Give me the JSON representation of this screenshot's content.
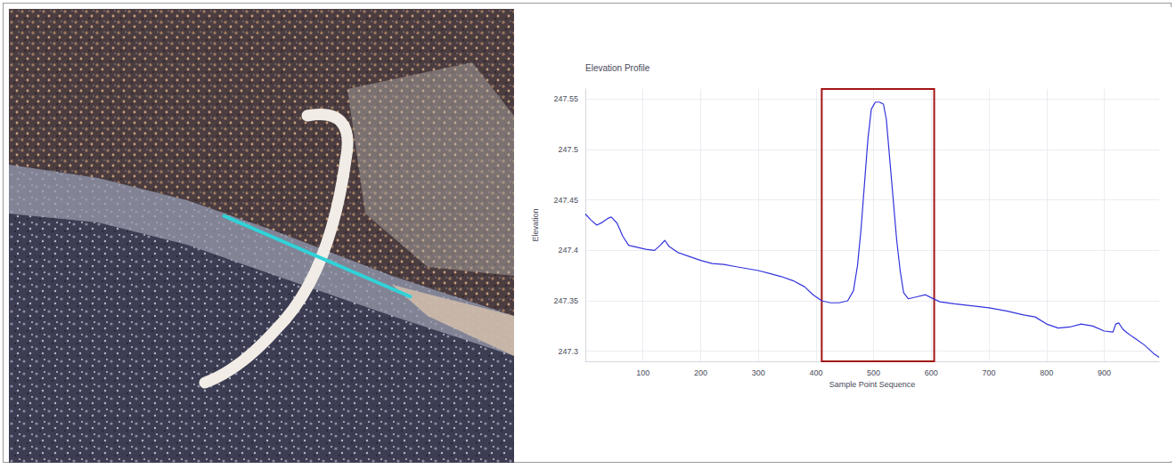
{
  "chart_data": {
    "type": "line",
    "title": "Elevation Profile",
    "x_label": "Sample Point Sequence",
    "y_label": "Elevation",
    "x": [
      0,
      10,
      20,
      30,
      40,
      45,
      55,
      65,
      75,
      90,
      105,
      120,
      130,
      138,
      145,
      160,
      180,
      200,
      220,
      240,
      260,
      280,
      300,
      320,
      340,
      360,
      380,
      395,
      410,
      425,
      440,
      455,
      465,
      472,
      478,
      484,
      490,
      496,
      503,
      510,
      517,
      522,
      528,
      534,
      540,
      546,
      552,
      560,
      575,
      590,
      600,
      615,
      640,
      670,
      700,
      730,
      760,
      780,
      800,
      820,
      840,
      860,
      880,
      900,
      915,
      920,
      925,
      932,
      940,
      955,
      970,
      985,
      995
    ],
    "values": [
      247.436,
      247.43,
      247.425,
      247.428,
      247.432,
      247.433,
      247.427,
      247.414,
      247.405,
      247.403,
      247.401,
      247.4,
      247.405,
      247.41,
      247.404,
      247.398,
      247.394,
      247.39,
      247.387,
      247.386,
      247.384,
      247.382,
      247.38,
      247.377,
      247.374,
      247.37,
      247.364,
      247.356,
      247.35,
      247.348,
      247.348,
      247.35,
      247.36,
      247.385,
      247.42,
      247.465,
      247.51,
      247.54,
      247.547,
      247.547,
      247.545,
      247.53,
      247.49,
      247.45,
      247.41,
      247.38,
      247.358,
      247.352,
      247.354,
      247.356,
      247.353,
      247.349,
      247.347,
      247.345,
      247.343,
      247.34,
      247.336,
      247.334,
      247.327,
      247.323,
      247.324,
      247.327,
      247.325,
      247.32,
      247.319,
      247.327,
      247.328,
      247.322,
      247.318,
      247.312,
      247.306,
      247.298,
      247.294
    ],
    "color": "#3333dd",
    "xlim": [
      0,
      995
    ],
    "xticks": [
      100,
      200,
      300,
      400,
      500,
      600,
      700,
      800,
      900
    ],
    "ylim": [
      247.29,
      247.56
    ],
    "yticks": [
      247.3,
      247.35,
      247.4,
      247.45,
      247.5,
      247.55
    ],
    "highlight": [
      410,
      605
    ],
    "grid": true
  }
}
